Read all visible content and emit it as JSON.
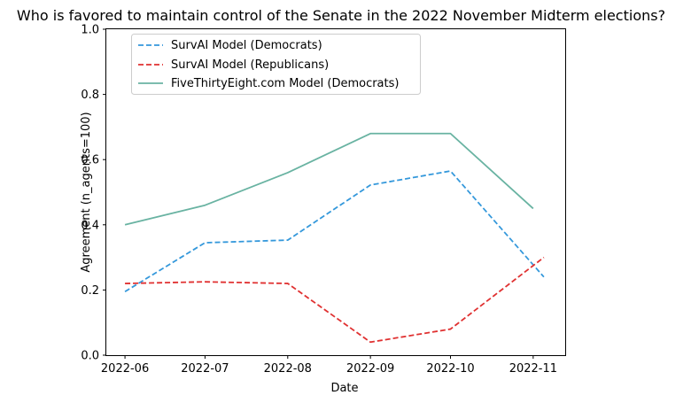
{
  "chart_data": {
    "type": "line",
    "title": "Who is favored to maintain control of the Senate in the 2022 November Midterm elections?",
    "xlabel": "Date",
    "ylabel": "Agreement (n_agents=100)",
    "ylim": [
      0,
      1
    ],
    "y_ticks": [
      "0.0",
      "0.2",
      "0.4",
      "0.6",
      "0.8",
      "1.0"
    ],
    "x_ticks": [
      "2022-06",
      "2022-07",
      "2022-08",
      "2022-09",
      "2022-10",
      "2022-11"
    ],
    "x_tick_dates": [
      "2022-06-01",
      "2022-07-01",
      "2022-08-01",
      "2022-09-01",
      "2022-10-01",
      "2022-11-01"
    ],
    "x_range": [
      "2022-05-25",
      "2022-11-13"
    ],
    "grid": false,
    "legend_position": "top-left",
    "series": [
      {
        "name": "SurvAI Model (Democrats)",
        "color": "#3498db",
        "style": "dashed",
        "x": [
          "2022-06-01",
          "2022-07-01",
          "2022-08-01",
          "2022-09-01",
          "2022-10-01",
          "2022-11-05"
        ],
        "y": [
          0.195,
          0.345,
          0.353,
          0.522,
          0.565,
          0.24
        ]
      },
      {
        "name": "SurvAI Model (Republicans)",
        "color": "#e03131",
        "style": "dashed",
        "x": [
          "2022-06-01",
          "2022-07-01",
          "2022-08-01",
          "2022-09-01",
          "2022-10-01",
          "2022-11-05"
        ],
        "y": [
          0.22,
          0.225,
          0.22,
          0.04,
          0.08,
          0.3
        ]
      },
      {
        "name": "FiveThirtyEight.com Model (Democrats)",
        "color": "#69b3a2",
        "style": "solid",
        "x": [
          "2022-06-01",
          "2022-07-01",
          "2022-08-01",
          "2022-09-01",
          "2022-10-01",
          "2022-11-01"
        ],
        "y": [
          0.4,
          0.46,
          0.56,
          0.68,
          0.68,
          0.45
        ]
      }
    ]
  }
}
